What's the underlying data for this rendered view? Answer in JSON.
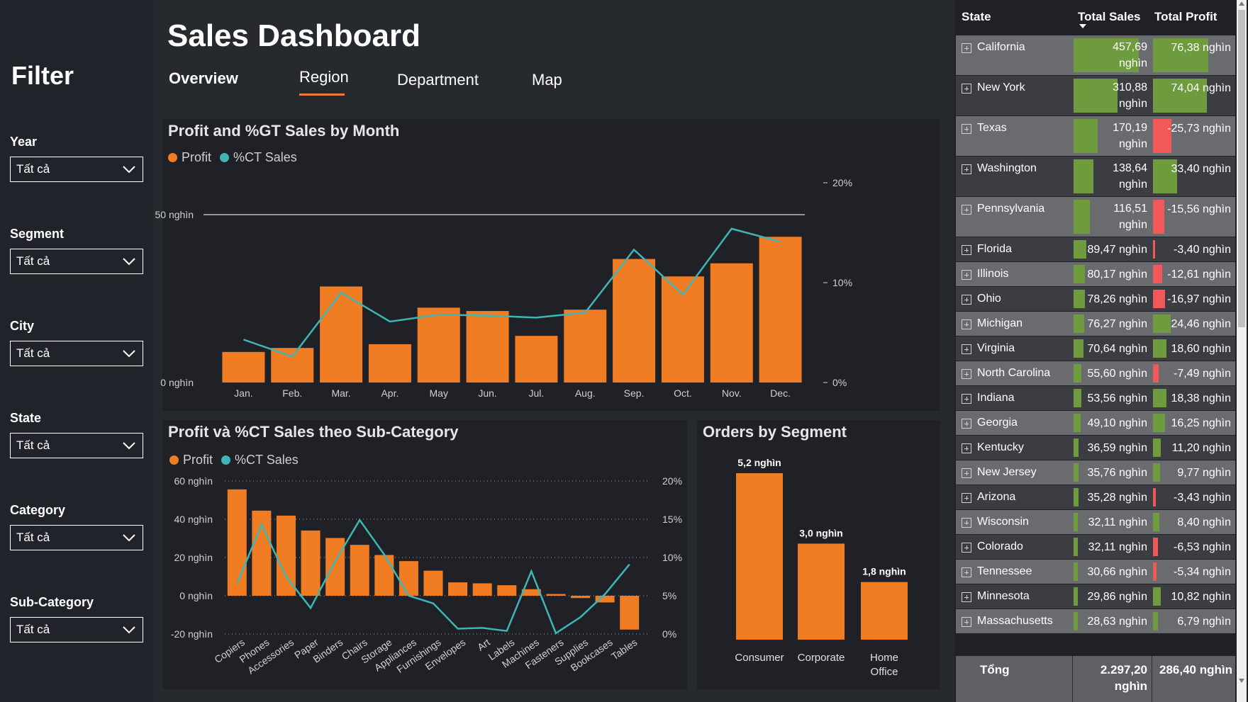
{
  "sidebar": {
    "title": "Filter",
    "filters": [
      {
        "label": "Year",
        "value": "Tất cả"
      },
      {
        "label": "Segment",
        "value": "Tất cả"
      },
      {
        "label": "City",
        "value": "Tất cả"
      },
      {
        "label": "State",
        "value": "Tất cả"
      },
      {
        "label": "Category",
        "value": "Tất cả"
      },
      {
        "label": "Sub-Category",
        "value": "Tất cả"
      }
    ]
  },
  "header": {
    "title": "Sales Dashboard",
    "tabs": [
      {
        "label": "Overview"
      },
      {
        "label": "Region"
      },
      {
        "label": "Department"
      },
      {
        "label": "Map"
      }
    ]
  },
  "colors": {
    "profit": "#f07c24",
    "sales_line": "#3fb5b5",
    "accent": "#e87d3e",
    "positive": "#6e9b3d",
    "negative": "#f1585a"
  },
  "monthly_chart": {
    "title": "Profit and %GT Sales by Month",
    "legend": [
      "Profit",
      "%CT Sales"
    ],
    "y_left_ticks": [
      "50 nghìn",
      "0 nghìn"
    ],
    "y_right_ticks": [
      "20%",
      "10%",
      "0%"
    ]
  },
  "subcat_chart": {
    "title": "Profit và %CT Sales theo Sub-Category",
    "legend": [
      "Profit",
      "%CT Sales"
    ],
    "y_left_ticks": [
      "60 nghìn",
      "40 nghìn",
      "20 nghìn",
      "0 nghìn",
      "-20 nghìn"
    ],
    "y_right_ticks": [
      "20%",
      "15%",
      "10%",
      "5%",
      "0%"
    ]
  },
  "segment_chart": {
    "title": "Orders by Segment"
  },
  "chart_data": [
    {
      "type": "bar",
      "title": "Profit and %GT Sales by Month",
      "categories": [
        "Jan.",
        "Feb.",
        "Mar.",
        "Apr.",
        "May",
        "Jun.",
        "Jul.",
        "Aug.",
        "Sep.",
        "Oct.",
        "Nov.",
        "Dec."
      ],
      "series": [
        {
          "name": "Profit",
          "values": [
            9.1,
            10.3,
            28.6,
            11.4,
            22.3,
            21.3,
            13.9,
            21.7,
            36.8,
            31.6,
            35.5,
            43.4
          ]
        },
        {
          "name": "%CT Sales",
          "values": [
            4.3,
            2.6,
            9.0,
            6.1,
            6.8,
            6.7,
            6.5,
            7.0,
            13.3,
            8.8,
            15.4,
            14.1
          ]
        }
      ],
      "y_left_range": [
        0,
        50
      ],
      "y_right_range": [
        0,
        20
      ]
    },
    {
      "type": "bar",
      "title": "Profit và %CT Sales theo Sub-Category",
      "categories": [
        "Copiers",
        "Phones",
        "Accessories",
        "Paper",
        "Binders",
        "Chairs",
        "Storage",
        "Appliances",
        "Furnishings",
        "Envelopes",
        "Art",
        "Labels",
        "Machines",
        "Fasteners",
        "Supplies",
        "Bookcases",
        "Tables"
      ],
      "series": [
        {
          "name": "Profit",
          "values": [
            55.6,
            44.5,
            41.9,
            34.1,
            30.2,
            26.6,
            21.3,
            18.1,
            13.1,
            7.0,
            6.5,
            5.5,
            3.4,
            0.9,
            -1.2,
            -3.5,
            -17.7
          ]
        },
        {
          "name": "%CT Sales",
          "values": [
            6.6,
            14.3,
            7.5,
            3.4,
            9.5,
            14.9,
            10.4,
            5.0,
            4.0,
            0.7,
            0.8,
            0.4,
            8.2,
            0.1,
            2.2,
            5.2,
            9.1
          ]
        }
      ],
      "y_left_range": [
        -20,
        60
      ],
      "y_right_range": [
        0,
        20
      ]
    },
    {
      "type": "bar",
      "title": "Orders by Segment",
      "categories": [
        "Consumer",
        "Corporate",
        "Home Office"
      ],
      "values": [
        5.2,
        3.0,
        1.8
      ],
      "labels": [
        "5,2 nghìn",
        "3,0 nghìn",
        "1,8 nghìn"
      ]
    }
  ],
  "table": {
    "headers": {
      "state": "State",
      "sales": "Total Sales",
      "profit": "Total Profit"
    },
    "rows": [
      {
        "state": "California",
        "sales": "457,69 nghìn",
        "profit": "76,38 nghìn",
        "sales_v": 457.69,
        "profit_v": 76.38
      },
      {
        "state": "New York",
        "sales": "310,88 nghìn",
        "profit": "74,04 nghìn",
        "sales_v": 310.88,
        "profit_v": 74.04
      },
      {
        "state": "Texas",
        "sales": "170,19 nghìn",
        "profit": "-25,73 nghìn",
        "sales_v": 170.19,
        "profit_v": -25.73
      },
      {
        "state": "Washington",
        "sales": "138,64 nghìn",
        "profit": "33,40 nghìn",
        "sales_v": 138.64,
        "profit_v": 33.4
      },
      {
        "state": "Pennsylvania",
        "sales": "116,51 nghìn",
        "profit": "-15,56 nghìn",
        "sales_v": 116.51,
        "profit_v": -15.56
      },
      {
        "state": "Florida",
        "sales": "89,47 nghìn",
        "profit": "-3,40 nghìn",
        "sales_v": 89.47,
        "profit_v": -3.4
      },
      {
        "state": "Illinois",
        "sales": "80,17 nghìn",
        "profit": "-12,61 nghìn",
        "sales_v": 80.17,
        "profit_v": -12.61
      },
      {
        "state": "Ohio",
        "sales": "78,26 nghìn",
        "profit": "-16,97 nghìn",
        "sales_v": 78.26,
        "profit_v": -16.97
      },
      {
        "state": "Michigan",
        "sales": "76,27 nghìn",
        "profit": "24,46 nghìn",
        "sales_v": 76.27,
        "profit_v": 24.46
      },
      {
        "state": "Virginia",
        "sales": "70,64 nghìn",
        "profit": "18,60 nghìn",
        "sales_v": 70.64,
        "profit_v": 18.6
      },
      {
        "state": "North Carolina",
        "sales": "55,60 nghìn",
        "profit": "-7,49 nghìn",
        "sales_v": 55.6,
        "profit_v": -7.49
      },
      {
        "state": "Indiana",
        "sales": "53,56 nghìn",
        "profit": "18,38 nghìn",
        "sales_v": 53.56,
        "profit_v": 18.38
      },
      {
        "state": "Georgia",
        "sales": "49,10 nghìn",
        "profit": "16,25 nghìn",
        "sales_v": 49.1,
        "profit_v": 16.25
      },
      {
        "state": "Kentucky",
        "sales": "36,59 nghìn",
        "profit": "11,20 nghìn",
        "sales_v": 36.59,
        "profit_v": 11.2
      },
      {
        "state": "New Jersey",
        "sales": "35,76 nghìn",
        "profit": "9,77 nghìn",
        "sales_v": 35.76,
        "profit_v": 9.77
      },
      {
        "state": "Arizona",
        "sales": "35,28 nghìn",
        "profit": "-3,43 nghìn",
        "sales_v": 35.28,
        "profit_v": -3.43
      },
      {
        "state": "Wisconsin",
        "sales": "32,11 nghìn",
        "profit": "8,40 nghìn",
        "sales_v": 32.11,
        "profit_v": 8.4
      },
      {
        "state": "Colorado",
        "sales": "32,11 nghìn",
        "profit": "-6,53 nghìn",
        "sales_v": 32.11,
        "profit_v": -6.53
      },
      {
        "state": "Tennessee",
        "sales": "30,66 nghìn",
        "profit": "-5,34 nghìn",
        "sales_v": 30.66,
        "profit_v": -5.34
      },
      {
        "state": "Minnesota",
        "sales": "29,86 nghìn",
        "profit": "10,82 nghìn",
        "sales_v": 29.86,
        "profit_v": 10.82
      },
      {
        "state": "Massachusetts",
        "sales": "28,63 nghìn",
        "profit": "6,79 nghìn",
        "sales_v": 28.63,
        "profit_v": 6.79
      }
    ],
    "total": {
      "label": "Tổng",
      "sales": "2.297,20 nghìn",
      "profit": "286,40 nghìn"
    }
  }
}
